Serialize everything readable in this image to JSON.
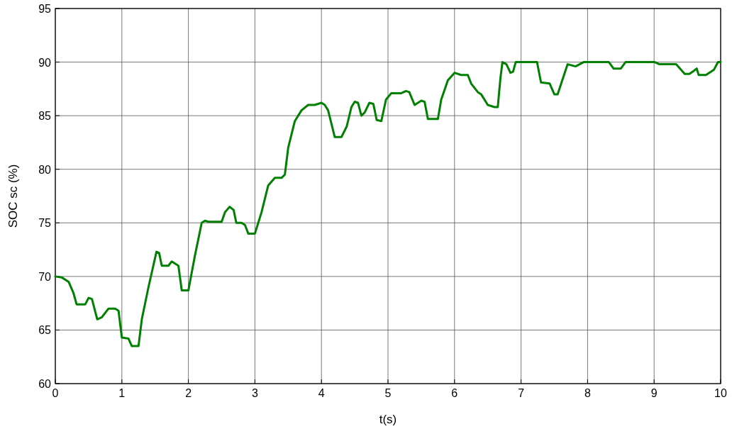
{
  "chart_data": {
    "type": "line",
    "xlabel": "t(s)",
    "ylabel": "SOC sc (%)",
    "xlim": [
      0,
      10
    ],
    "ylim": [
      60,
      95
    ],
    "xticks": [
      0,
      1,
      2,
      3,
      4,
      5,
      6,
      7,
      8,
      9,
      10
    ],
    "yticks": [
      60,
      65,
      70,
      75,
      80,
      85,
      90,
      95
    ],
    "grid": true,
    "marker": "none",
    "line_style": "solid",
    "series": [
      {
        "color": "#008000",
        "x": [
          0,
          0.1,
          0.2,
          0.27,
          0.32,
          0.45,
          0.5,
          0.55,
          0.63,
          0.7,
          0.8,
          0.9,
          0.95,
          1.0,
          1.1,
          1.15,
          1.25,
          1.3,
          1.4,
          1.52,
          1.56,
          1.6,
          1.7,
          1.75,
          1.85,
          1.9,
          2.0,
          2.1,
          2.2,
          2.25,
          2.3,
          2.5,
          2.55,
          2.62,
          2.68,
          2.72,
          2.8,
          2.85,
          2.9,
          3.0,
          3.1,
          3.2,
          3.3,
          3.4,
          3.45,
          3.5,
          3.6,
          3.7,
          3.8,
          3.9,
          4.0,
          4.05,
          4.1,
          4.2,
          4.3,
          4.38,
          4.45,
          4.5,
          4.55,
          4.6,
          4.65,
          4.72,
          4.78,
          4.83,
          4.9,
          4.97,
          5.05,
          5.2,
          5.27,
          5.32,
          5.4,
          5.5,
          5.55,
          5.6,
          5.75,
          5.8,
          5.9,
          6.0,
          6.1,
          6.2,
          6.25,
          6.35,
          6.4,
          6.5,
          6.6,
          6.65,
          6.69,
          6.72,
          6.78,
          6.84,
          6.88,
          6.92,
          7.24,
          7.3,
          7.43,
          7.5,
          7.55,
          7.7,
          7.82,
          7.94,
          8.32,
          8.39,
          8.5,
          8.57,
          9.01,
          9.08,
          9.33,
          9.46,
          9.53,
          9.6,
          9.64,
          9.67,
          9.78,
          9.9,
          9.96,
          10
        ],
        "values": [
          70,
          69.9,
          69.5,
          68.5,
          67.4,
          67.4,
          68,
          67.9,
          66,
          66.2,
          67,
          67,
          66.8,
          64.3,
          64.2,
          63.5,
          63.5,
          66,
          69,
          72.3,
          72.2,
          71,
          71,
          71.4,
          71,
          68.7,
          68.7,
          72,
          75,
          75.2,
          75.1,
          75.1,
          76,
          76.5,
          76.2,
          75,
          75,
          74.8,
          74,
          74,
          76,
          78.5,
          79.2,
          79.2,
          79.5,
          82,
          84.5,
          85.5,
          86,
          86,
          86.2,
          86,
          85.5,
          83,
          83,
          84,
          85.8,
          86.3,
          86.2,
          85,
          85.3,
          86.2,
          86.1,
          84.6,
          84.5,
          86.5,
          87.1,
          87.1,
          87.3,
          87.2,
          86,
          86.4,
          86.3,
          84.7,
          84.7,
          86.5,
          88.3,
          89,
          88.8,
          88.8,
          88,
          87.2,
          87,
          86,
          85.8,
          85.8,
          88.5,
          90,
          89.8,
          89,
          89.1,
          90,
          90,
          88.1,
          88,
          87,
          87,
          89.8,
          89.6,
          90,
          90,
          89.4,
          89.4,
          90,
          90,
          89.8,
          89.8,
          88.9,
          88.9,
          89.2,
          89.4,
          88.8,
          88.8,
          89.3,
          90,
          90
        ]
      }
    ]
  }
}
